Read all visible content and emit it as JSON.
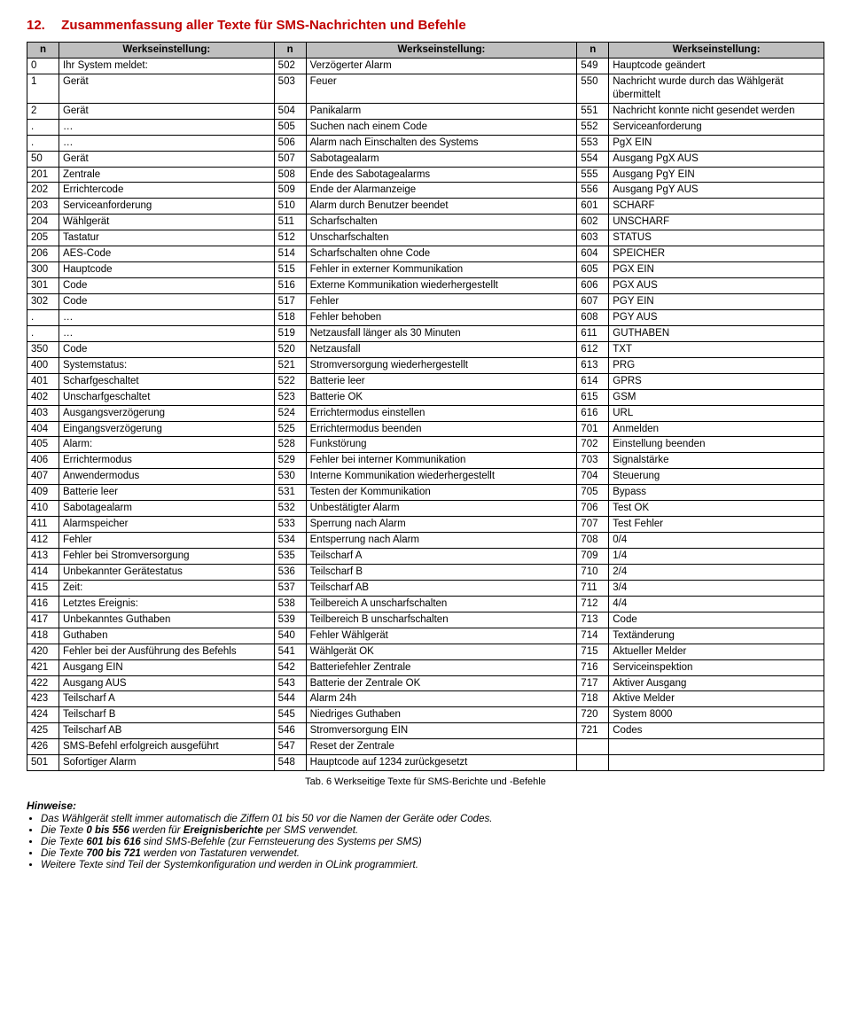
{
  "section": {
    "number": "12.",
    "title": "Zusammenfassung aller Texte für SMS-Nachrichten und Befehle"
  },
  "header": {
    "n": "n",
    "werk": "Werkseinstellung:"
  },
  "rows": [
    {
      "c1n": "0",
      "c1t": "Ihr System meldet:",
      "c2n": "502",
      "c2t": "Verzögerter Alarm",
      "c3n": "549",
      "c3t": "Hauptcode geändert"
    },
    {
      "c1n": "1",
      "c1t": "Gerät",
      "c2n": "503",
      "c2t": "Feuer",
      "c3n": "550",
      "c3t": "Nachricht wurde durch das Wählgerät übermittelt"
    },
    {
      "c1n": "2",
      "c1t": "Gerät",
      "c2n": "504",
      "c2t": "Panikalarm",
      "c3n": "551",
      "c3t": "Nachricht konnte nicht gesendet werden"
    },
    {
      "c1n": ".",
      "c1t": "…",
      "c2n": "505",
      "c2t": "Suchen nach einem Code",
      "c3n": "552",
      "c3t": "Serviceanforderung"
    },
    {
      "c1n": ".",
      "c1t": "…",
      "c2n": "506",
      "c2t": "Alarm nach Einschalten des Systems",
      "c3n": "553",
      "c3t": "PgX EIN"
    },
    {
      "c1n": "50",
      "c1t": "Gerät",
      "c2n": "507",
      "c2t": "Sabotagealarm",
      "c3n": "554",
      "c3t": "Ausgang PgX AUS"
    },
    {
      "c1n": "201",
      "c1t": "Zentrale",
      "c2n": "508",
      "c2t": "Ende des Sabotagealarms",
      "c3n": "555",
      "c3t": "Ausgang PgY EIN"
    },
    {
      "c1n": "202",
      "c1t": "Errichtercode",
      "c2n": "509",
      "c2t": "Ende der Alarmanzeige",
      "c3n": "556",
      "c3t": "Ausgang PgY AUS"
    },
    {
      "c1n": "203",
      "c1t": "Serviceanforderung",
      "c2n": "510",
      "c2t": "Alarm durch Benutzer beendet",
      "c3n": "601",
      "c3t": "SCHARF"
    },
    {
      "c1n": "204",
      "c1t": "Wählgerät",
      "c2n": "511",
      "c2t": "Scharfschalten",
      "c3n": "602",
      "c3t": "UNSCHARF"
    },
    {
      "c1n": "205",
      "c1t": "Tastatur",
      "c2n": "512",
      "c2t": "Unscharfschalten",
      "c3n": "603",
      "c3t": "STATUS"
    },
    {
      "c1n": "206",
      "c1t": "AES-Code",
      "c2n": "514",
      "c2t": "Scharfschalten ohne Code",
      "c3n": "604",
      "c3t": "SPEICHER"
    },
    {
      "c1n": "300",
      "c1t": "Hauptcode",
      "c2n": "515",
      "c2t": "Fehler in externer Kommunikation",
      "c3n": "605",
      "c3t": "PGX EIN"
    },
    {
      "c1n": "301",
      "c1t": "Code",
      "c2n": "516",
      "c2t": "Externe Kommunikation wiederhergestellt",
      "c3n": "606",
      "c3t": "PGX AUS"
    },
    {
      "c1n": "302",
      "c1t": "Code",
      "c2n": "517",
      "c2t": "Fehler",
      "c3n": "607",
      "c3t": "PGY EIN"
    },
    {
      "c1n": ".",
      "c1t": "…",
      "c2n": "518",
      "c2t": "Fehler behoben",
      "c3n": "608",
      "c3t": "PGY AUS"
    },
    {
      "c1n": ".",
      "c1t": "…",
      "c2n": "519",
      "c2t": "Netzausfall länger als 30 Minuten",
      "c3n": "611",
      "c3t": "GUTHABEN"
    },
    {
      "c1n": "350",
      "c1t": "Code",
      "c2n": "520",
      "c2t": "Netzausfall",
      "c3n": "612",
      "c3t": "TXT"
    },
    {
      "c1n": "400",
      "c1t": "Systemstatus:",
      "c2n": "521",
      "c2t": "Stromversorgung wiederhergestellt",
      "c3n": "613",
      "c3t": "PRG"
    },
    {
      "c1n": "401",
      "c1t": "Scharfgeschaltet",
      "c2n": "522",
      "c2t": "Batterie leer",
      "c3n": "614",
      "c3t": "GPRS"
    },
    {
      "c1n": "402",
      "c1t": "Unscharfgeschaltet",
      "c2n": "523",
      "c2t": "Batterie OK",
      "c3n": "615",
      "c3t": "GSM"
    },
    {
      "c1n": "403",
      "c1t": "Ausgangsverzögerung",
      "c2n": "524",
      "c2t": "Errichtermodus einstellen",
      "c3n": "616",
      "c3t": "URL"
    },
    {
      "c1n": "404",
      "c1t": "Eingangsverzögerung",
      "c2n": "525",
      "c2t": "Errichtermodus beenden",
      "c3n": "701",
      "c3t": "Anmelden"
    },
    {
      "c1n": "405",
      "c1t": "Alarm:",
      "c2n": "528",
      "c2t": "Funkstörung",
      "c3n": "702",
      "c3t": "Einstellung beenden"
    },
    {
      "c1n": "406",
      "c1t": "Errichtermodus",
      "c2n": "529",
      "c2t": "Fehler bei interner Kommunikation",
      "c3n": "703",
      "c3t": "Signalstärke"
    },
    {
      "c1n": "407",
      "c1t": "Anwendermodus",
      "c2n": "530",
      "c2t": "Interne Kommunikation wiederhergestellt",
      "c3n": "704",
      "c3t": "Steuerung"
    },
    {
      "c1n": "409",
      "c1t": "Batterie leer",
      "c2n": "531",
      "c2t": "Testen der Kommunikation",
      "c3n": "705",
      "c3t": "Bypass"
    },
    {
      "c1n": "410",
      "c1t": "Sabotagealarm",
      "c2n": "532",
      "c2t": "Unbestätigter Alarm",
      "c3n": "706",
      "c3t": "Test OK"
    },
    {
      "c1n": "411",
      "c1t": "Alarmspeicher",
      "c2n": "533",
      "c2t": "Sperrung nach Alarm",
      "c3n": "707",
      "c3t": "Test Fehler"
    },
    {
      "c1n": "412",
      "c1t": "Fehler",
      "c2n": "534",
      "c2t": "Entsperrung nach Alarm",
      "c3n": "708",
      "c3t": "0/4"
    },
    {
      "c1n": "413",
      "c1t": "Fehler bei Stromversorgung",
      "c2n": "535",
      "c2t": "Teilscharf A",
      "c3n": "709",
      "c3t": "1/4"
    },
    {
      "c1n": "414",
      "c1t": "Unbekannter Gerätestatus",
      "c2n": "536",
      "c2t": "Teilscharf  B",
      "c3n": "710",
      "c3t": "2/4"
    },
    {
      "c1n": "415",
      "c1t": "Zeit:",
      "c2n": "537",
      "c2t": "Teilscharf  AB",
      "c3n": "711",
      "c3t": "3/4"
    },
    {
      "c1n": "416",
      "c1t": "Letztes Ereignis:",
      "c2n": "538",
      "c2t": "Teilbereich A unscharfschalten",
      "c3n": "712",
      "c3t": "4/4"
    },
    {
      "c1n": "417",
      "c1t": "Unbekanntes Guthaben",
      "c2n": "539",
      "c2t": "Teilbereich B unscharfschalten",
      "c3n": "713",
      "c3t": "Code"
    },
    {
      "c1n": "418",
      "c1t": "Guthaben",
      "c2n": "540",
      "c2t": "Fehler Wählgerät",
      "c3n": "714",
      "c3t": "Textänderung"
    },
    {
      "c1n": "420",
      "c1t": "Fehler bei der Ausführung des Befehls",
      "c2n": "541",
      "c2t": "Wählgerät OK",
      "c3n": "715",
      "c3t": "Aktueller Melder"
    },
    {
      "c1n": "421",
      "c1t": "Ausgang EIN",
      "c2n": "542",
      "c2t": "Batteriefehler Zentrale",
      "c3n": "716",
      "c3t": "Serviceinspektion"
    },
    {
      "c1n": "422",
      "c1t": "Ausgang AUS",
      "c2n": "543",
      "c2t": "Batterie der Zentrale OK",
      "c3n": "717",
      "c3t": "Aktiver Ausgang"
    },
    {
      "c1n": "423",
      "c1t": "Teilscharf A",
      "c2n": "544",
      "c2t": "Alarm 24h",
      "c3n": "718",
      "c3t": "Aktive Melder"
    },
    {
      "c1n": "424",
      "c1t": "Teilscharf B",
      "c2n": "545",
      "c2t": "Niedriges Guthaben",
      "c3n": "720",
      "c3t": "System 8000"
    },
    {
      "c1n": "425",
      "c1t": "Teilscharf AB",
      "c2n": "546",
      "c2t": "Stromversorgung EIN",
      "c3n": "721",
      "c3t": "Codes"
    },
    {
      "c1n": "426",
      "c1t": "SMS-Befehl erfolgreich ausgeführt",
      "c2n": "547",
      "c2t": "Reset der Zentrale",
      "c3n": "",
      "c3t": ""
    },
    {
      "c1n": "501",
      "c1t": "Sofortiger Alarm",
      "c2n": "548",
      "c2t": "Hauptcode auf 1234 zurückgesetzt",
      "c3n": "",
      "c3t": ""
    }
  ],
  "caption": "Tab. 6 Werkseitige Texte für SMS-Berichte und -Befehle",
  "hints": {
    "title": "Hinweise:",
    "items": [
      "Das Wählgerät stellt immer automatisch die Ziffern 01 bis 50 vor die Namen der Geräte oder Codes.",
      "Die Texte <b>0 bis 556</b> werden für <b>Ereignisberichte</b> per SMS verwendet.",
      "Die Texte <b>601 bis 616</b> sind SMS-Befehle (zur Fernsteuerung des Systems per SMS)",
      "Die Texte <b>700 bis 721</b> werden von Tastaturen verwendet.",
      "Weitere Texte sind Teil der Systemkonfiguration und werden in OLink programmiert."
    ]
  }
}
